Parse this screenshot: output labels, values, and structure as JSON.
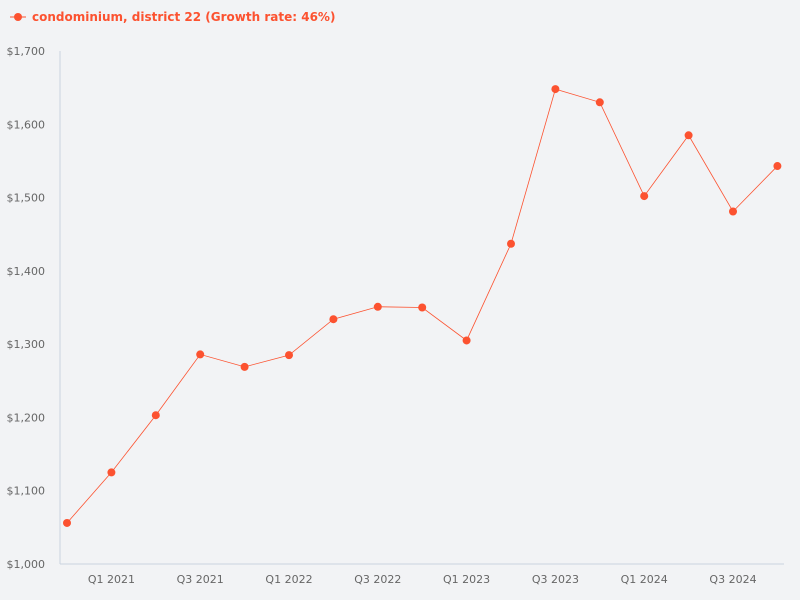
{
  "chart_data": {
    "type": "line",
    "title": "",
    "xlabel": "",
    "ylabel": "",
    "legend": {
      "label": "condominium, district 22 (Growth rate: 46%)",
      "placement": "top-left"
    },
    "color": "#fc5230",
    "grid": false,
    "ylim": [
      1000,
      1700
    ],
    "y_ticks": [
      "$1,000",
      "$1,100",
      "$1,200",
      "$1,300",
      "$1,400",
      "$1,500",
      "$1,600",
      "$1,700"
    ],
    "y_tick_values": [
      1000,
      1100,
      1200,
      1300,
      1400,
      1500,
      1600,
      1700
    ],
    "categories": [
      "Q4 2020",
      "Q1 2021",
      "Q2 2021",
      "Q3 2021",
      "Q4 2021",
      "Q1 2022",
      "Q2 2022",
      "Q3 2022",
      "Q4 2022",
      "Q1 2023",
      "Q2 2023",
      "Q3 2023",
      "Q4 2023",
      "Q1 2024",
      "Q2 2024",
      "Q3 2024",
      "Q4 2024"
    ],
    "x_tick_labels": [
      "Q1 2021",
      "Q3 2021",
      "Q1 2022",
      "Q3 2022",
      "Q1 2023",
      "Q3 2023",
      "Q1 2024",
      "Q3 2024"
    ],
    "series": [
      {
        "name": "condominium, district 22",
        "values": [
          1056,
          1125,
          1203,
          1286,
          1269,
          1285,
          1334,
          1351,
          1350,
          1305,
          1437,
          1648,
          1630,
          1502,
          1585,
          1481,
          1543
        ]
      }
    ]
  }
}
